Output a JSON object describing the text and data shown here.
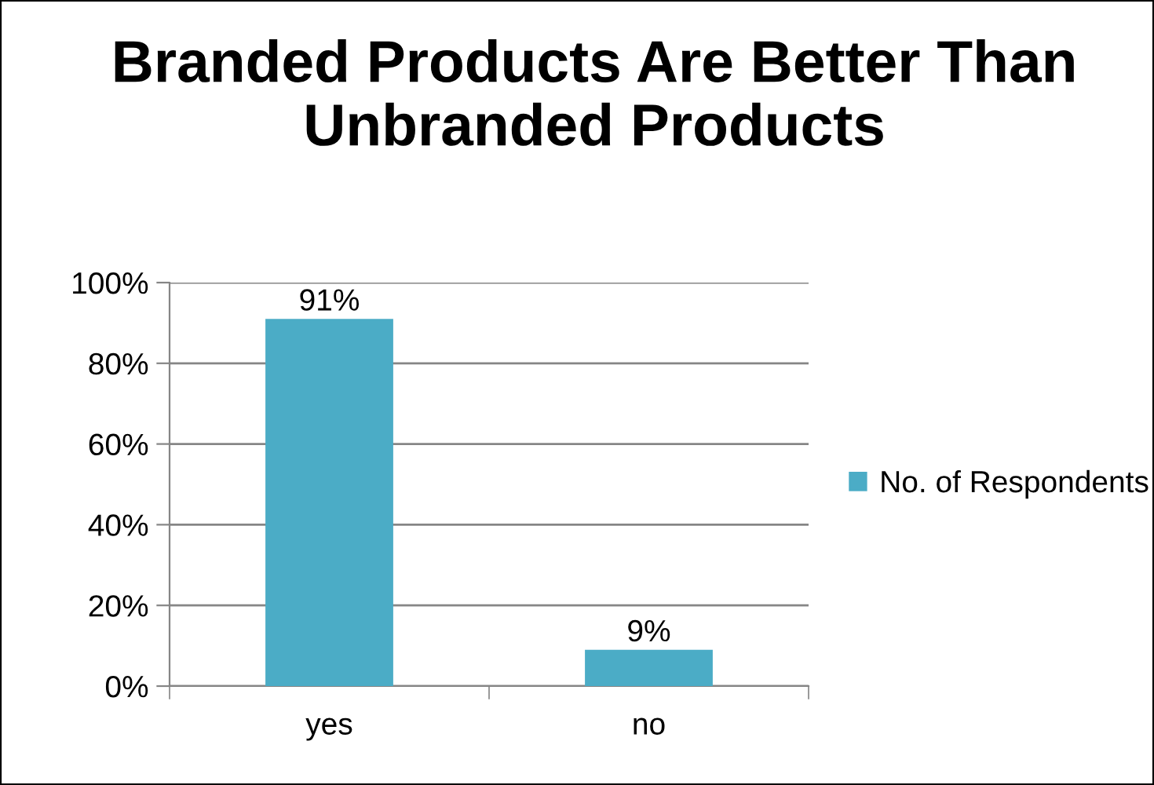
{
  "chart_data": {
    "type": "bar",
    "title": "Branded Products Are Better Than Unbranded Products",
    "categories": [
      "yes",
      "no"
    ],
    "series": [
      {
        "name": "No. of Respondents",
        "color": "#4bacc6",
        "values": [
          91,
          9
        ],
        "value_labels": [
          "91%",
          "9%"
        ]
      }
    ],
    "ylim": [
      0,
      100
    ],
    "yticks": [
      {
        "value": 0,
        "label": "0%"
      },
      {
        "value": 20,
        "label": "20%"
      },
      {
        "value": 40,
        "label": "40%"
      },
      {
        "value": 60,
        "label": "60%"
      },
      {
        "value": 80,
        "label": "80%"
      },
      {
        "value": 100,
        "label": "100%"
      }
    ],
    "grid": "y",
    "legend": "right"
  }
}
